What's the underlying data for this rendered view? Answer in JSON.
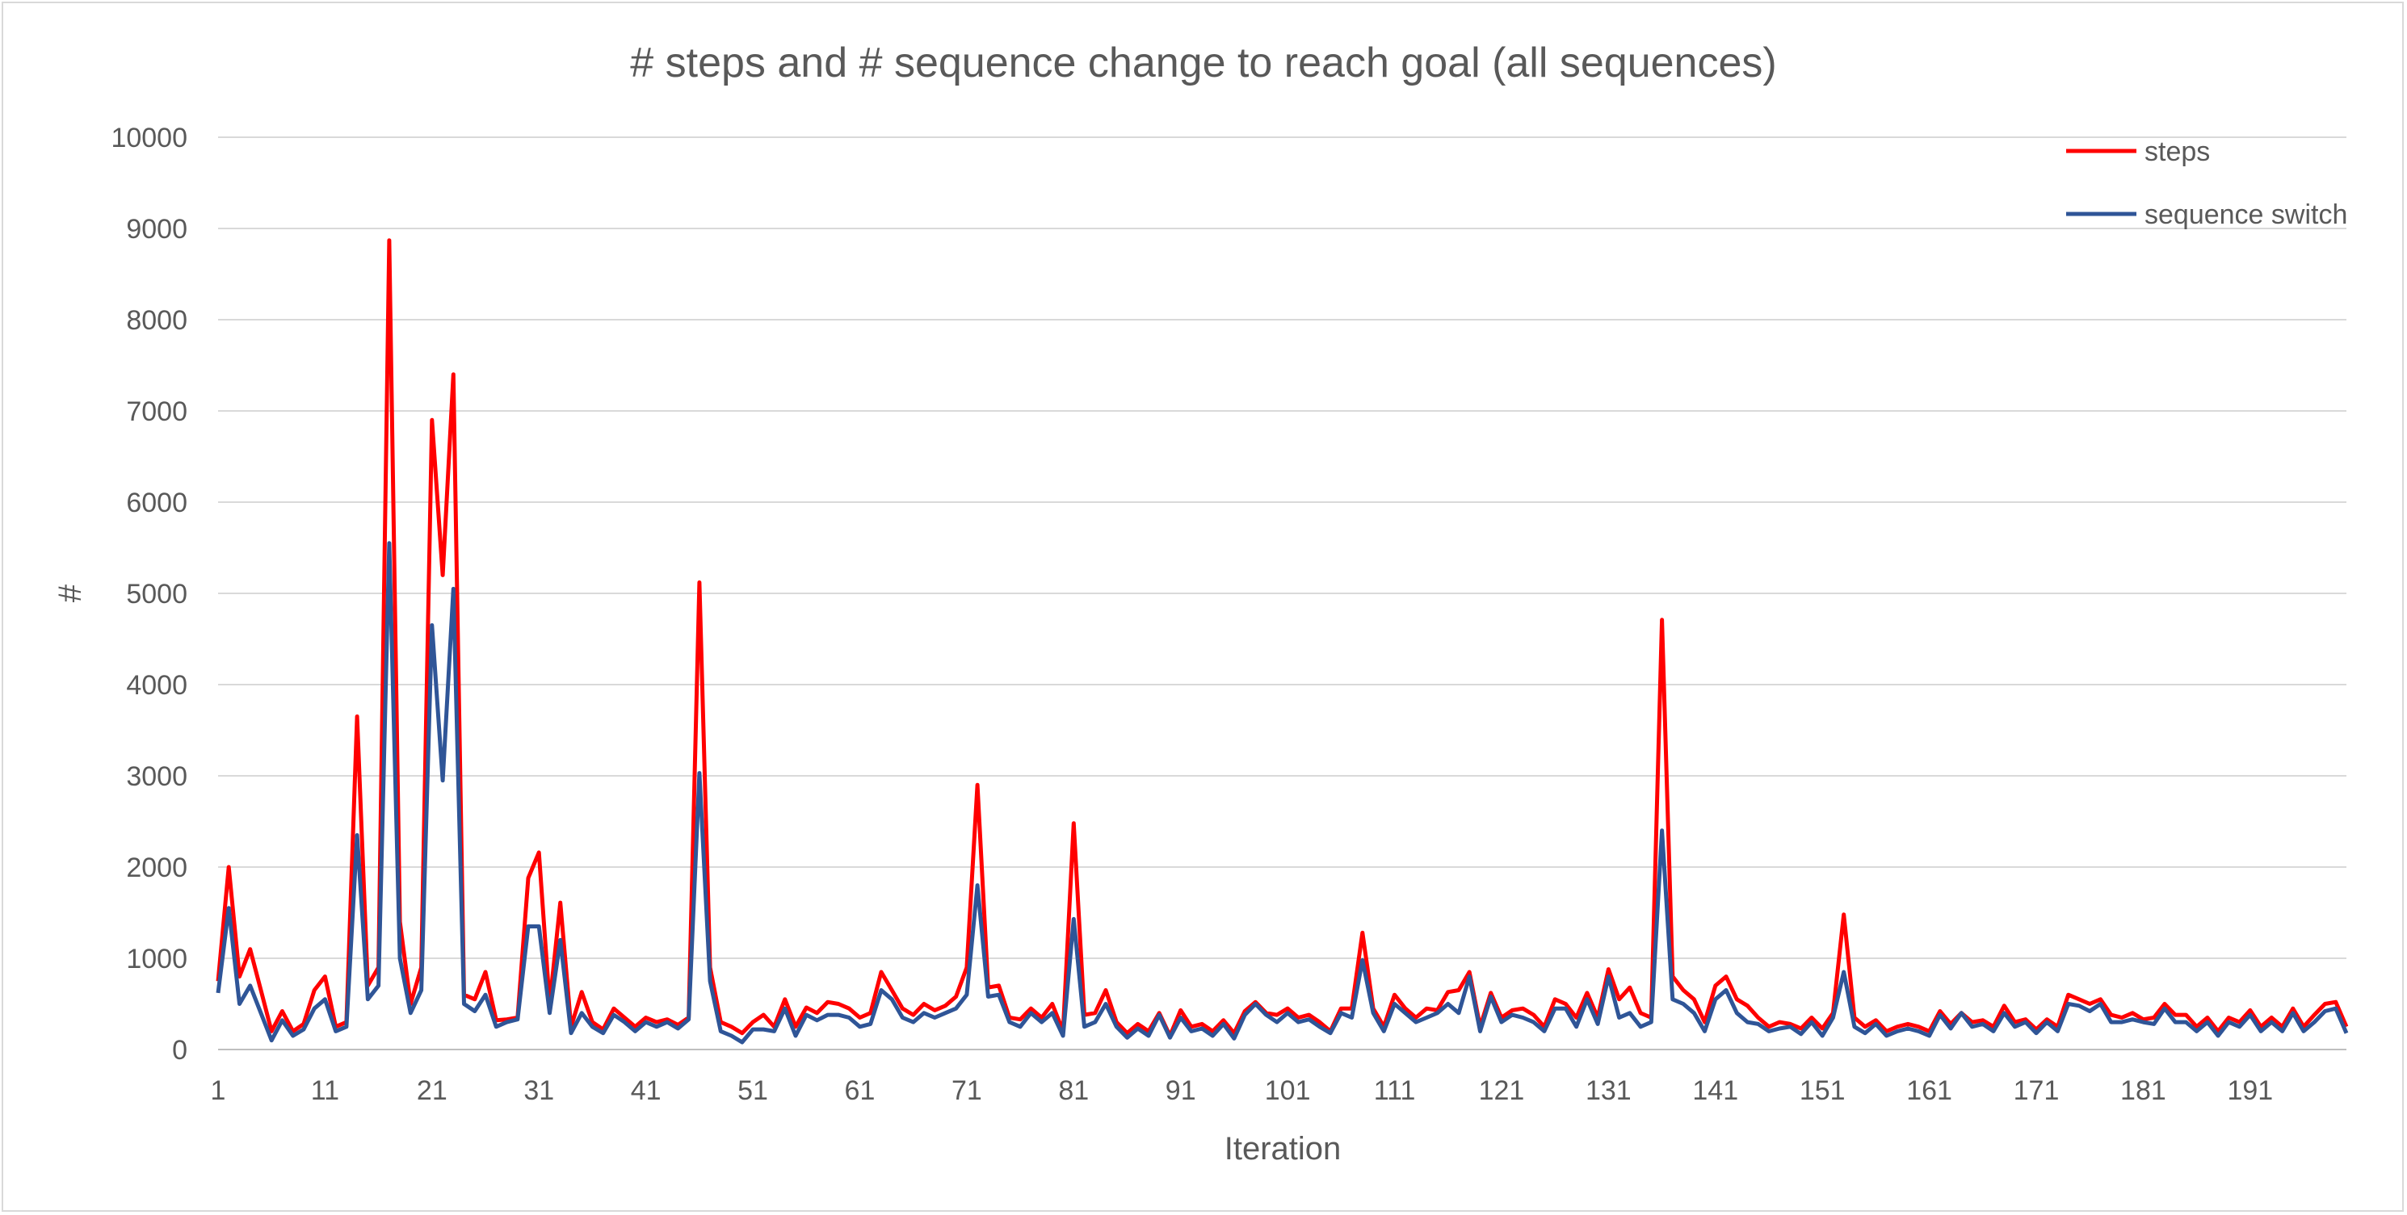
{
  "chart_data": {
    "type": "line",
    "title": "# steps and # sequence change to reach goal (all sequences)",
    "xlabel": "Iteration",
    "ylabel": "#",
    "ylim": [
      0,
      10000
    ],
    "y_ticks": [
      0,
      1000,
      2000,
      3000,
      4000,
      5000,
      6000,
      7000,
      8000,
      9000,
      10000
    ],
    "x_tick_labels": [
      "1",
      "11",
      "21",
      "31",
      "41",
      "51",
      "61",
      "71",
      "81",
      "91",
      "101",
      "111",
      "121",
      "131",
      "141",
      "151",
      "161",
      "171",
      "181",
      "191"
    ],
    "x_range": [
      1,
      200
    ],
    "grid": "horizontal",
    "legend_position": "top-right",
    "series": [
      {
        "name": "steps",
        "color": "#ff0000",
        "values": [
          750,
          2000,
          800,
          1100,
          650,
          200,
          420,
          200,
          280,
          650,
          800,
          250,
          300,
          3650,
          700,
          900,
          8870,
          1400,
          500,
          900,
          6900,
          5200,
          7400,
          600,
          550,
          850,
          320,
          330,
          350,
          1880,
          2160,
          500,
          1610,
          250,
          630,
          300,
          220,
          450,
          350,
          250,
          350,
          300,
          330,
          270,
          350,
          5120,
          900,
          300,
          250,
          180,
          300,
          380,
          250,
          550,
          250,
          460,
          400,
          520,
          500,
          450,
          350,
          400,
          850,
          650,
          450,
          380,
          500,
          430,
          480,
          580,
          900,
          2900,
          680,
          700,
          350,
          330,
          450,
          350,
          500,
          200,
          2480,
          380,
          400,
          650,
          300,
          180,
          280,
          200,
          400,
          150,
          430,
          250,
          280,
          200,
          320,
          180,
          420,
          520,
          400,
          380,
          450,
          350,
          380,
          300,
          200,
          450,
          450,
          1280,
          450,
          250,
          600,
          450,
          350,
          450,
          430,
          630,
          650,
          850,
          250,
          620,
          350,
          430,
          450,
          380,
          250,
          550,
          500,
          350,
          620,
          350,
          880,
          550,
          680,
          400,
          350,
          4710,
          800,
          650,
          550,
          300,
          700,
          800,
          550,
          480,
          350,
          250,
          300,
          280,
          230,
          350,
          230,
          400,
          1480,
          350,
          250,
          320,
          200,
          250,
          280,
          250,
          200,
          420,
          280,
          400,
          300,
          320,
          250,
          480,
          300,
          330,
          220,
          330,
          250,
          600,
          550,
          500,
          550,
          380,
          350,
          400,
          330,
          350,
          500,
          380,
          380,
          250,
          350,
          200,
          350,
          300,
          430,
          250,
          350,
          250,
          450,
          250,
          380,
          500,
          520,
          250
        ]
      },
      {
        "name": "sequence switch",
        "color": "#2f5597",
        "values": [
          620,
          1550,
          500,
          700,
          400,
          100,
          320,
          150,
          220,
          450,
          550,
          200,
          250,
          2350,
          550,
          700,
          5550,
          1000,
          400,
          650,
          4650,
          2950,
          5050,
          500,
          420,
          600,
          250,
          300,
          330,
          1350,
          1350,
          400,
          1200,
          180,
          400,
          250,
          180,
          380,
          300,
          200,
          300,
          250,
          300,
          230,
          330,
          3030,
          750,
          200,
          150,
          80,
          220,
          220,
          200,
          450,
          150,
          380,
          320,
          380,
          380,
          350,
          250,
          280,
          650,
          550,
          350,
          300,
          400,
          350,
          400,
          450,
          600,
          1800,
          580,
          600,
          300,
          250,
          400,
          300,
          400,
          150,
          1430,
          250,
          300,
          500,
          250,
          130,
          230,
          150,
          380,
          130,
          350,
          200,
          230,
          150,
          280,
          120,
          380,
          500,
          380,
          300,
          400,
          300,
          330,
          250,
          180,
          400,
          350,
          980,
          400,
          200,
          500,
          400,
          300,
          350,
          400,
          500,
          400,
          800,
          200,
          580,
          300,
          380,
          350,
          300,
          200,
          450,
          450,
          250,
          550,
          280,
          800,
          350,
          400,
          250,
          300,
          2400,
          550,
          500,
          400,
          200,
          550,
          650,
          400,
          300,
          280,
          200,
          230,
          250,
          170,
          300,
          150,
          350,
          850,
          250,
          180,
          280,
          150,
          200,
          230,
          200,
          150,
          380,
          230,
          400,
          250,
          280,
          200,
          400,
          250,
          300,
          180,
          300,
          200,
          500,
          480,
          420,
          500,
          300,
          300,
          330,
          300,
          280,
          450,
          300,
          300,
          200,
          300,
          150,
          300,
          250,
          380,
          200,
          300,
          200,
          400,
          200,
          300,
          420,
          450,
          180
        ]
      }
    ]
  }
}
